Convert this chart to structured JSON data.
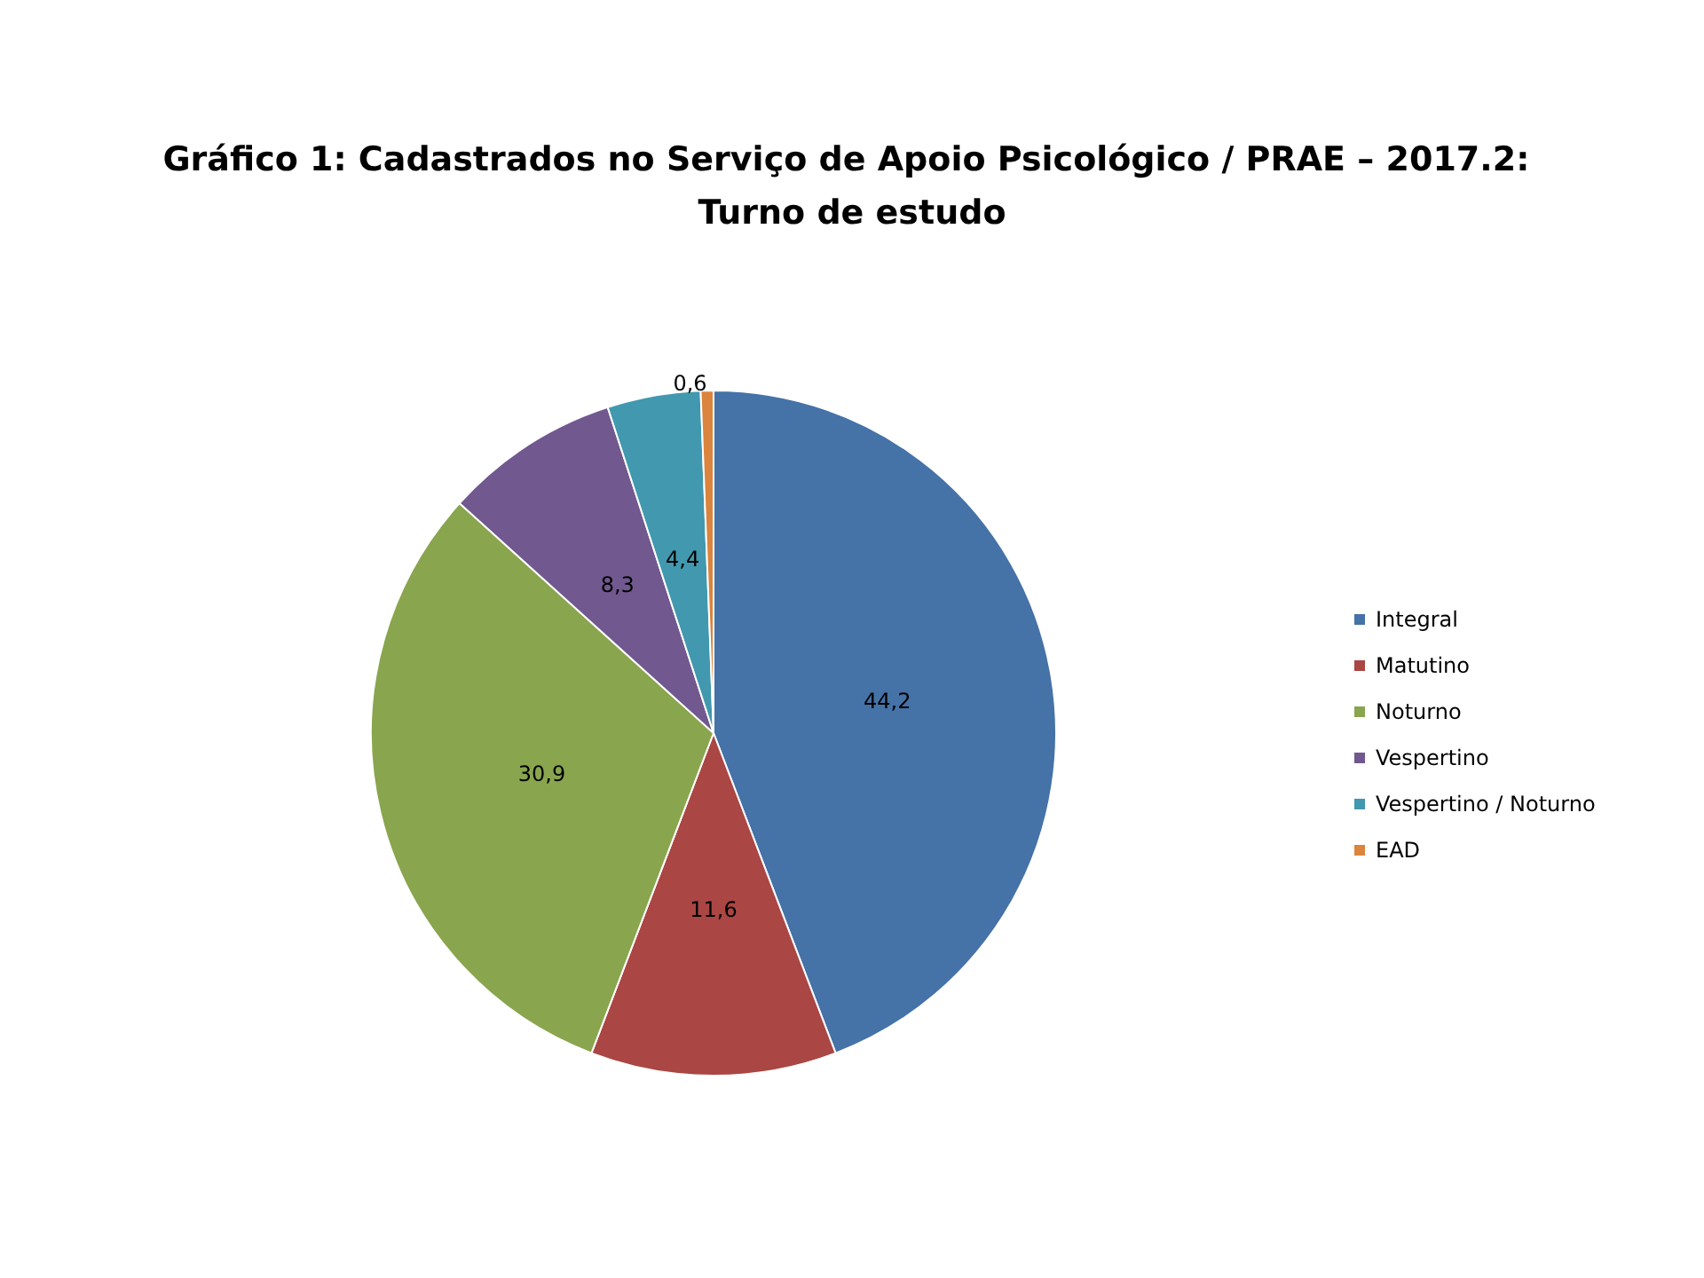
{
  "chart_data": {
    "type": "pie",
    "title": "Gráfico 1: Cadastrados no Serviço de Apoio Psicológico / PRAE – 2017.2: Turno de estudo",
    "categories": [
      "Integral",
      "Matutino",
      "Noturno",
      "Vespertino",
      "Vespertino / Noturno",
      "EAD"
    ],
    "values": [
      44.2,
      11.6,
      30.9,
      8.3,
      4.4,
      0.6
    ],
    "value_labels": [
      "44,2",
      "11,6",
      "30,9",
      "8,3",
      "4,4",
      "0,6"
    ],
    "colors": [
      "#4572a7",
      "#aa4643",
      "#89a54e",
      "#71588f",
      "#4198af",
      "#db843d"
    ],
    "legend": "right"
  }
}
